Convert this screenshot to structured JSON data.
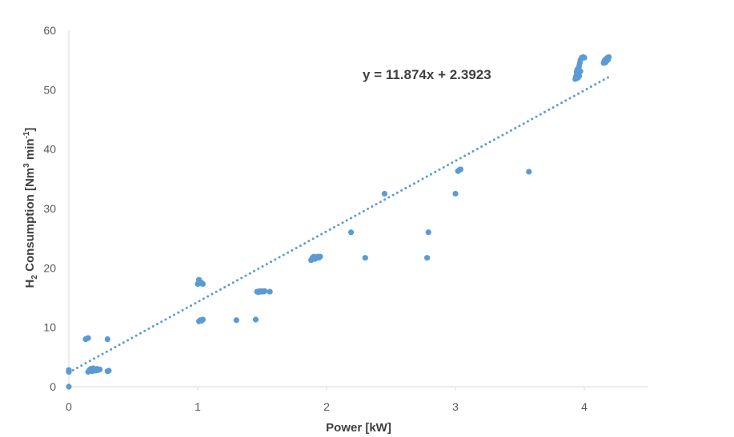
{
  "chart_data": {
    "type": "scatter",
    "xlabel": "Power [kW]",
    "ylabel_parts": {
      "pre": "H",
      "sub1": "2",
      "mid": " Consumption [Nm",
      "sup1": "3",
      "mid2": " min",
      "sup2": "-1",
      "post": "]"
    },
    "xlim": [
      0,
      4.5
    ],
    "ylim": [
      0,
      60
    ],
    "xticks": [
      0,
      1,
      2,
      3,
      4
    ],
    "yticks": [
      0,
      10,
      20,
      30,
      40,
      50,
      60
    ],
    "grid": false,
    "point_color": "#5B9BD5",
    "trendline": {
      "type": "linear",
      "slope": 11.874,
      "intercept": 2.3923,
      "x_range": [
        0,
        4.2
      ],
      "style": "dotted",
      "color": "#5B9BD5",
      "equation": "y = 11.874x + 2.3923"
    },
    "points": [
      [
        0,
        0
      ],
      [
        0,
        2.5
      ],
      [
        0,
        2.8
      ],
      [
        0.13,
        8.0
      ],
      [
        0.14,
        8.1
      ],
      [
        0.15,
        8.2
      ],
      [
        0.15,
        2.5
      ],
      [
        0.16,
        2.8
      ],
      [
        0.17,
        3.0
      ],
      [
        0.18,
        2.6
      ],
      [
        0.19,
        3.1
      ],
      [
        0.2,
        2.9
      ],
      [
        0.21,
        2.7
      ],
      [
        0.22,
        3.0
      ],
      [
        0.23,
        2.8
      ],
      [
        0.24,
        2.9
      ],
      [
        0.3,
        8.0
      ],
      [
        0.3,
        2.6
      ],
      [
        0.31,
        2.7
      ],
      [
        1.0,
        17.3
      ],
      [
        1.01,
        17.6
      ],
      [
        1.01,
        18.0
      ],
      [
        1.02,
        17.4
      ],
      [
        1.03,
        17.5
      ],
      [
        1.04,
        17.3
      ],
      [
        1.01,
        11.0
      ],
      [
        1.02,
        11.2
      ],
      [
        1.03,
        11.1
      ],
      [
        1.04,
        11.3
      ],
      [
        1.3,
        11.2
      ],
      [
        1.45,
        11.3
      ],
      [
        1.46,
        16.0
      ],
      [
        1.47,
        15.9
      ],
      [
        1.48,
        16.1
      ],
      [
        1.49,
        16.0
      ],
      [
        1.5,
        16.1
      ],
      [
        1.51,
        16.0
      ],
      [
        1.52,
        16.1
      ],
      [
        1.56,
        16.0
      ],
      [
        1.88,
        21.3
      ],
      [
        1.89,
        21.7
      ],
      [
        1.9,
        21.9
      ],
      [
        1.91,
        21.5
      ],
      [
        1.92,
        21.8
      ],
      [
        1.93,
        21.9
      ],
      [
        1.94,
        21.7
      ],
      [
        1.95,
        21.9
      ],
      [
        2.19,
        26.0
      ],
      [
        2.3,
        21.7
      ],
      [
        2.45,
        32.5
      ],
      [
        2.78,
        21.7
      ],
      [
        2.79,
        26.0
      ],
      [
        3.0,
        32.5
      ],
      [
        3.02,
        36.3
      ],
      [
        3.03,
        36.5
      ],
      [
        3.04,
        36.6
      ],
      [
        3.57,
        36.2
      ],
      [
        3.93,
        51.8
      ],
      [
        3.935,
        52.2
      ],
      [
        3.94,
        52.5
      ],
      [
        3.94,
        53.0
      ],
      [
        3.945,
        53.4
      ],
      [
        3.95,
        52.0
      ],
      [
        3.95,
        52.8
      ],
      [
        3.955,
        53.6
      ],
      [
        3.96,
        54.0
      ],
      [
        3.96,
        52.3
      ],
      [
        3.965,
        54.5
      ],
      [
        3.97,
        53.1
      ],
      [
        3.97,
        55.0
      ],
      [
        3.98,
        55.4
      ],
      [
        3.99,
        55.5
      ],
      [
        4.0,
        55.4
      ],
      [
        4.15,
        54.5
      ],
      [
        4.155,
        54.8
      ],
      [
        4.16,
        55.0
      ],
      [
        4.165,
        54.6
      ],
      [
        4.17,
        55.2
      ],
      [
        4.175,
        54.9
      ],
      [
        4.18,
        55.4
      ],
      [
        4.185,
        55.1
      ],
      [
        4.19,
        55.5
      ]
    ]
  }
}
